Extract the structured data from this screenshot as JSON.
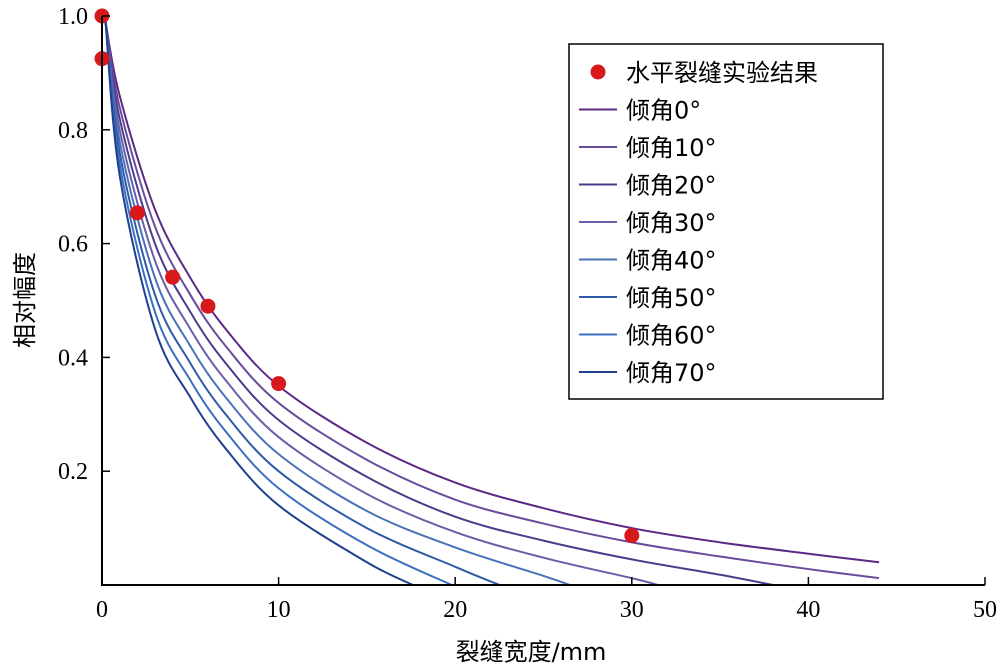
{
  "chart_data": {
    "type": "line",
    "title": "",
    "xlabel": "裂缝宽度/mm",
    "ylabel": "相对幅度",
    "xlim": [
      0,
      50
    ],
    "ylim": [
      0,
      1.0
    ],
    "x_ticks": [
      0,
      10,
      20,
      30,
      40,
      50
    ],
    "x_tick_labels": [
      "0",
      "10",
      "20",
      "30",
      "40",
      "50"
    ],
    "y_ticks": [
      0.2,
      0.4,
      0.6,
      0.8,
      1.0
    ],
    "y_tick_labels": [
      "0.2",
      "0.4",
      "0.6",
      "0.8",
      "1.0"
    ],
    "grid": false,
    "legend_position": "top-right",
    "scatter": {
      "name": "水平裂缝实验结果",
      "color": "#d7191c",
      "x": [
        0,
        0,
        2,
        4,
        6,
        10,
        30
      ],
      "y": [
        1.0,
        0.925,
        0.654,
        0.541,
        0.49,
        0.354,
        0.087
      ]
    },
    "series": [
      {
        "name": "倾角0°",
        "color": "#5b2a86",
        "x": [
          0.2,
          1,
          3,
          5,
          7,
          10,
          15,
          20,
          25,
          30,
          35,
          40,
          44
        ],
        "y": [
          0.99,
          0.86,
          0.66,
          0.54,
          0.45,
          0.35,
          0.25,
          0.18,
          0.135,
          0.1,
          0.075,
          0.055,
          0.04
        ]
      },
      {
        "name": "倾角10°",
        "color": "#6a4c9c",
        "x": [
          0.2,
          1,
          3,
          5,
          7,
          10,
          15,
          20,
          25,
          30,
          35,
          40,
          44
        ],
        "y": [
          0.99,
          0.84,
          0.63,
          0.51,
          0.42,
          0.32,
          0.22,
          0.15,
          0.108,
          0.075,
          0.05,
          0.028,
          0.012
        ]
      },
      {
        "name": "倾角20°",
        "color": "#4b3c8c",
        "x": [
          0.2,
          1,
          3,
          5,
          7,
          10,
          15,
          20,
          25,
          30,
          35,
          38
        ],
        "y": [
          0.99,
          0.82,
          0.6,
          0.48,
          0.39,
          0.29,
          0.19,
          0.12,
          0.078,
          0.045,
          0.018,
          0.0
        ]
      },
      {
        "name": "倾角30°",
        "color": "#6b5ea8",
        "x": [
          0.2,
          1,
          3,
          5,
          7,
          10,
          15,
          20,
          25,
          30,
          31.5
        ],
        "y": [
          0.99,
          0.8,
          0.57,
          0.45,
          0.36,
          0.26,
          0.16,
          0.093,
          0.048,
          0.012,
          0.0
        ]
      },
      {
        "name": "倾角40°",
        "color": "#4a72b8",
        "x": [
          0.2,
          1,
          3,
          5,
          7,
          10,
          15,
          20,
          25,
          26.5
        ],
        "y": [
          0.99,
          0.78,
          0.54,
          0.42,
          0.33,
          0.23,
          0.13,
          0.066,
          0.016,
          0.0
        ]
      },
      {
        "name": "倾角50°",
        "color": "#2f5aa8",
        "x": [
          0.2,
          1,
          3,
          5,
          7,
          10,
          15,
          20,
          22.5
        ],
        "y": [
          0.99,
          0.76,
          0.51,
          0.39,
          0.3,
          0.2,
          0.1,
          0.032,
          0.0
        ]
      },
      {
        "name": "倾角60°",
        "color": "#3b6fc0",
        "x": [
          0.2,
          1,
          3,
          5,
          7,
          10,
          15,
          19.8
        ],
        "y": [
          0.99,
          0.74,
          0.48,
          0.36,
          0.27,
          0.17,
          0.07,
          0.0
        ]
      },
      {
        "name": "倾角70°",
        "color": "#1f3f8f",
        "x": [
          0.2,
          1,
          3,
          5,
          7,
          10,
          15,
          17.6
        ],
        "y": [
          0.99,
          0.72,
          0.45,
          0.33,
          0.24,
          0.14,
          0.04,
          0.0
        ]
      }
    ]
  }
}
